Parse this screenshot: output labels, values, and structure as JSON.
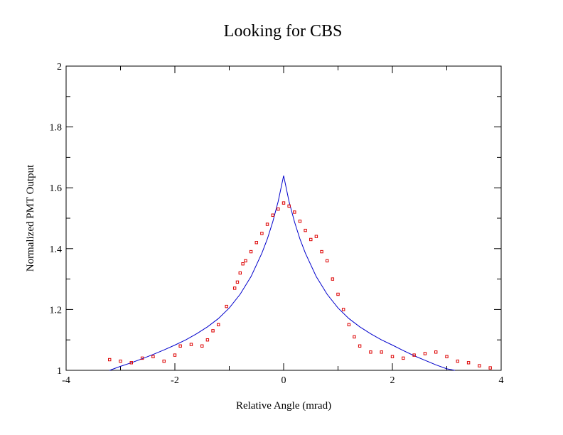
{
  "chart_data": {
    "type": "scatter",
    "title": "Looking for CBS",
    "xlabel": "Relative Angle (mrad)",
    "ylabel": "Normalized PMT Output",
    "xlim": [
      -4,
      4
    ],
    "ylim": [
      1,
      2
    ],
    "x_ticks": [
      -4,
      -2,
      0,
      2,
      4
    ],
    "y_ticks": [
      1,
      1.2,
      1.4,
      1.6,
      1.8,
      2
    ],
    "x_tick_labels": [
      "-4",
      "-2",
      "0",
      "2",
      "4"
    ],
    "y_tick_labels": [
      "1",
      "1.2",
      "1.4",
      "1.6",
      "1.8",
      "2"
    ],
    "grid": false,
    "series": [
      {
        "kind": "line",
        "color": "#0000cc",
        "points": [
          [
            -3.2,
            1.0
          ],
          [
            -3.0,
            1.013
          ],
          [
            -2.8,
            1.025
          ],
          [
            -2.6,
            1.038
          ],
          [
            -2.4,
            1.052
          ],
          [
            -2.2,
            1.067
          ],
          [
            -2.0,
            1.083
          ],
          [
            -1.8,
            1.1
          ],
          [
            -1.6,
            1.12
          ],
          [
            -1.4,
            1.143
          ],
          [
            -1.2,
            1.17
          ],
          [
            -1.0,
            1.205
          ],
          [
            -0.8,
            1.25
          ],
          [
            -0.6,
            1.308
          ],
          [
            -0.4,
            1.385
          ],
          [
            -0.3,
            1.432
          ],
          [
            -0.2,
            1.488
          ],
          [
            -0.1,
            1.555
          ],
          [
            0.0,
            1.64
          ],
          [
            0.1,
            1.555
          ],
          [
            0.2,
            1.488
          ],
          [
            0.3,
            1.432
          ],
          [
            0.4,
            1.385
          ],
          [
            0.6,
            1.308
          ],
          [
            0.8,
            1.25
          ],
          [
            1.0,
            1.205
          ],
          [
            1.2,
            1.17
          ],
          [
            1.4,
            1.143
          ],
          [
            1.6,
            1.12
          ],
          [
            1.8,
            1.1
          ],
          [
            2.0,
            1.083
          ],
          [
            2.2,
            1.065
          ],
          [
            2.4,
            1.048
          ],
          [
            2.6,
            1.033
          ],
          [
            2.8,
            1.018
          ],
          [
            3.0,
            1.005
          ],
          [
            3.15,
            1.0
          ]
        ]
      },
      {
        "kind": "markers",
        "color": "#dd0000",
        "points": [
          [
            -3.2,
            1.035
          ],
          [
            -3.0,
            1.03
          ],
          [
            -2.8,
            1.025
          ],
          [
            -2.6,
            1.04
          ],
          [
            -2.4,
            1.045
          ],
          [
            -2.2,
            1.03
          ],
          [
            -2.0,
            1.05
          ],
          [
            -1.9,
            1.08
          ],
          [
            -1.7,
            1.085
          ],
          [
            -1.5,
            1.08
          ],
          [
            -1.4,
            1.1
          ],
          [
            -1.3,
            1.13
          ],
          [
            -1.2,
            1.15
          ],
          [
            -1.05,
            1.21
          ],
          [
            -0.9,
            1.27
          ],
          [
            -0.85,
            1.29
          ],
          [
            -0.8,
            1.32
          ],
          [
            -0.75,
            1.35
          ],
          [
            -0.7,
            1.36
          ],
          [
            -0.6,
            1.39
          ],
          [
            -0.5,
            1.42
          ],
          [
            -0.4,
            1.45
          ],
          [
            -0.3,
            1.48
          ],
          [
            -0.2,
            1.51
          ],
          [
            -0.1,
            1.53
          ],
          [
            0.0,
            1.55
          ],
          [
            0.1,
            1.54
          ],
          [
            0.2,
            1.52
          ],
          [
            0.3,
            1.49
          ],
          [
            0.4,
            1.46
          ],
          [
            0.5,
            1.43
          ],
          [
            0.6,
            1.44
          ],
          [
            0.7,
            1.39
          ],
          [
            0.8,
            1.36
          ],
          [
            0.9,
            1.3
          ],
          [
            1.0,
            1.25
          ],
          [
            1.1,
            1.2
          ],
          [
            1.2,
            1.15
          ],
          [
            1.3,
            1.11
          ],
          [
            1.4,
            1.08
          ],
          [
            1.6,
            1.06
          ],
          [
            1.8,
            1.06
          ],
          [
            2.0,
            1.045
          ],
          [
            2.2,
            1.04
          ],
          [
            2.4,
            1.05
          ],
          [
            2.6,
            1.055
          ],
          [
            2.8,
            1.06
          ],
          [
            3.0,
            1.045
          ],
          [
            3.2,
            1.03
          ],
          [
            3.4,
            1.025
          ],
          [
            3.6,
            1.015
          ],
          [
            3.8,
            1.008
          ]
        ]
      }
    ]
  }
}
